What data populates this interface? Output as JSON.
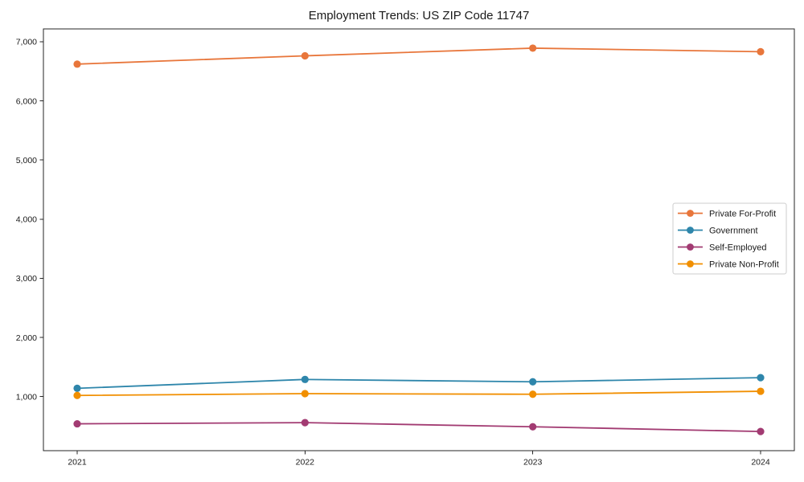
{
  "chart_data": {
    "type": "line",
    "title": "Employment Trends: US ZIP Code 11747",
    "x": [
      2021,
      2022,
      2023,
      2024
    ],
    "x_tick_labels": [
      "2021",
      "2022",
      "2023",
      "2024"
    ],
    "series": [
      {
        "name": "Private For-Profit",
        "color": "#E8763B",
        "values": [
          6620,
          6760,
          6890,
          6830
        ]
      },
      {
        "name": "Government",
        "color": "#2E86AB",
        "values": [
          1140,
          1290,
          1250,
          1320
        ]
      },
      {
        "name": "Self-Employed",
        "color": "#A23B72",
        "values": [
          540,
          560,
          490,
          410
        ]
      },
      {
        "name": "Private Non-Profit",
        "color": "#F18F01",
        "values": [
          1020,
          1050,
          1040,
          1090
        ]
      }
    ],
    "ylim": [
      86,
      7215
    ],
    "yticks": {
      "values": [
        1000,
        2000,
        3000,
        4000,
        5000,
        6000,
        7000
      ],
      "labels": [
        "1,000",
        "2,000",
        "3,000",
        "4,000",
        "5,000",
        "6,000",
        "7,000"
      ]
    },
    "xlabel": "",
    "ylabel": "",
    "grid": false,
    "legend": {
      "position": "center-right",
      "border_color": "#cccccc",
      "background": "#ffffff"
    },
    "axis_color": "#262626",
    "text_color": "#1a1a1a",
    "background_color": "#ffffff"
  }
}
